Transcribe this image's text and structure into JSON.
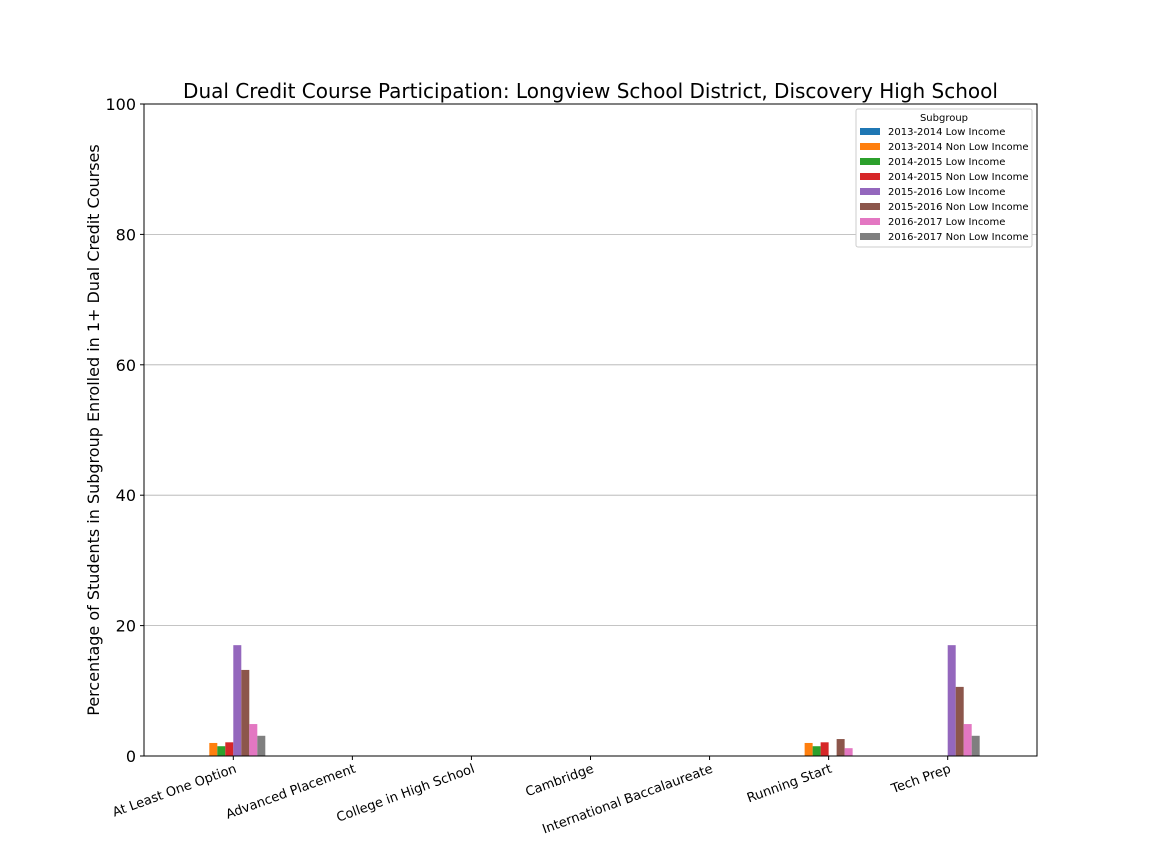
{
  "chart_data": {
    "type": "bar",
    "title": "Dual Credit Course Participation: Longview School District, Discovery High School",
    "xlabel": "",
    "ylabel": "Percentage of Students in Subgroup Enrolled in 1+ Dual Credit Courses",
    "ylim": [
      0,
      100
    ],
    "yticks": [
      0,
      20,
      40,
      60,
      80,
      100
    ],
    "grid": "y",
    "legend_title": "Subgroup",
    "legend_position": "top-right",
    "categories": [
      "At Least One Option",
      "Advanced Placement",
      "College in High School",
      "Cambridge",
      "International Baccalaureate",
      "Running Start",
      "Tech Prep"
    ],
    "series": [
      {
        "name": "2013-2014 Low Income",
        "color": "#1f77b4",
        "values": [
          0,
          0,
          0,
          0,
          0,
          0,
          0
        ]
      },
      {
        "name": "2013-2014 Non Low Income",
        "color": "#ff7f0e",
        "values": [
          2.0,
          0,
          0,
          0,
          0,
          2.0,
          0
        ]
      },
      {
        "name": "2014-2015 Low Income",
        "color": "#2ca02c",
        "values": [
          1.5,
          0,
          0,
          0,
          0,
          1.5,
          0
        ]
      },
      {
        "name": "2014-2015 Non Low Income",
        "color": "#d62728",
        "values": [
          2.1,
          0,
          0,
          0,
          0,
          2.1,
          0
        ]
      },
      {
        "name": "2015-2016 Low Income",
        "color": "#9467bd",
        "values": [
          17.0,
          0,
          0,
          0,
          0,
          0,
          17.0
        ]
      },
      {
        "name": "2015-2016 Non Low Income",
        "color": "#8c564b",
        "values": [
          13.2,
          0,
          0,
          0,
          0,
          2.6,
          10.6
        ]
      },
      {
        "name": "2016-2017 Low Income",
        "color": "#e377c2",
        "values": [
          4.9,
          0,
          0,
          0,
          0,
          1.2,
          4.9
        ]
      },
      {
        "name": "2016-2017 Non Low Income",
        "color": "#7f7f7f",
        "values": [
          3.1,
          0,
          0,
          0,
          0,
          0,
          3.1
        ]
      }
    ]
  }
}
